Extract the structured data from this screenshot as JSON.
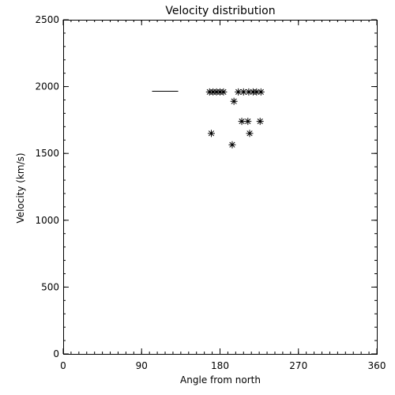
{
  "chart_data": {
    "type": "scatter",
    "title": "Velocity distribution",
    "xlabel": "Angle from north",
    "ylabel": "Velocity (km/s)",
    "xlim": [
      0,
      360
    ],
    "ylim": [
      0,
      2500
    ],
    "xticks": [
      0,
      90,
      180,
      270,
      360
    ],
    "yticks": [
      0,
      500,
      1000,
      1500,
      2000,
      2500
    ],
    "xtick_labels": [
      "0",
      "90",
      "180",
      "270",
      "360"
    ],
    "ytick_labels": [
      "0",
      "500",
      "1000",
      "1500",
      "2000",
      "2500"
    ],
    "grid": false,
    "marker": "asterisk",
    "points": [
      {
        "x": 168,
        "y": 1960
      },
      {
        "x": 172,
        "y": 1960
      },
      {
        "x": 176,
        "y": 1960
      },
      {
        "x": 180,
        "y": 1960
      },
      {
        "x": 184,
        "y": 1960
      },
      {
        "x": 201,
        "y": 1960
      },
      {
        "x": 207,
        "y": 1960
      },
      {
        "x": 213,
        "y": 1960
      },
      {
        "x": 218,
        "y": 1960
      },
      {
        "x": 222,
        "y": 1960
      },
      {
        "x": 227,
        "y": 1960
      },
      {
        "x": 196,
        "y": 1890
      },
      {
        "x": 205,
        "y": 1740
      },
      {
        "x": 212,
        "y": 1740
      },
      {
        "x": 226,
        "y": 1740
      },
      {
        "x": 170,
        "y": 1650
      },
      {
        "x": 214,
        "y": 1650
      },
      {
        "x": 194,
        "y": 1565
      }
    ],
    "segments": [
      {
        "x": [
          102,
          132
        ],
        "y": [
          1965,
          1965
        ]
      }
    ]
  }
}
